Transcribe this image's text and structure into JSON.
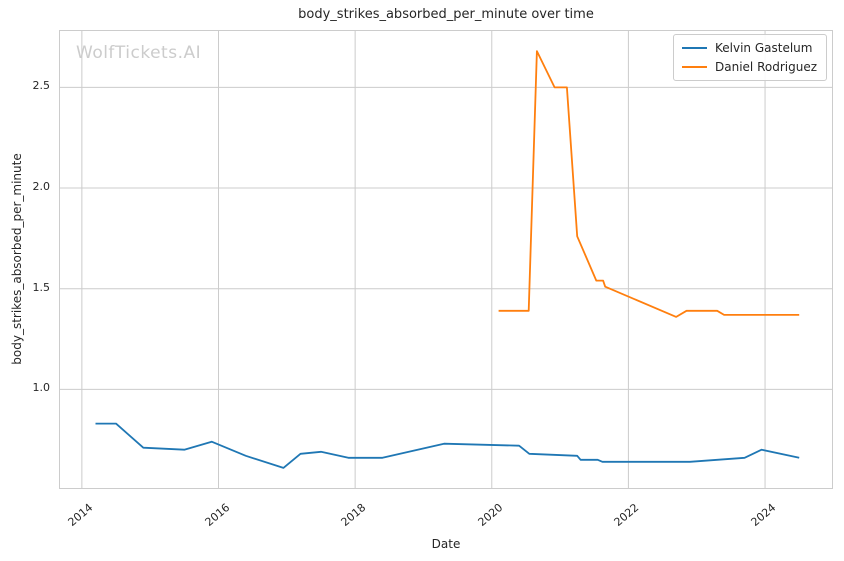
{
  "watermark": "WolfTickets.AI",
  "chart_data": {
    "type": "line",
    "title": "body_strikes_absorbed_per_minute over time",
    "xlabel": "Date",
    "ylabel": "body_strikes_absorbed_per_minute",
    "grid": true,
    "legend_position": "upper right",
    "xlim": [
      2013.68,
      2024.98
    ],
    "ylim": [
      0.51,
      2.78
    ],
    "x_ticks": [
      {
        "value": 2014,
        "label": "2014"
      },
      {
        "value": 2016,
        "label": "2016"
      },
      {
        "value": 2018,
        "label": "2018"
      },
      {
        "value": 2020,
        "label": "2020"
      },
      {
        "value": 2022,
        "label": "2022"
      },
      {
        "value": 2024,
        "label": "2024"
      }
    ],
    "y_ticks": [
      {
        "value": 1.0,
        "label": "1.0"
      },
      {
        "value": 1.5,
        "label": "1.5"
      },
      {
        "value": 2.0,
        "label": "2.0"
      },
      {
        "value": 2.5,
        "label": "2.5"
      }
    ],
    "series": [
      {
        "name": "Kelvin Gastelum",
        "color": "#1f77b4",
        "points": [
          [
            2014.2,
            0.83
          ],
          [
            2014.5,
            0.83
          ],
          [
            2014.9,
            0.71
          ],
          [
            2015.5,
            0.7
          ],
          [
            2015.9,
            0.74
          ],
          [
            2016.4,
            0.67
          ],
          [
            2016.95,
            0.61
          ],
          [
            2017.2,
            0.68
          ],
          [
            2017.5,
            0.69
          ],
          [
            2017.9,
            0.66
          ],
          [
            2018.4,
            0.66
          ],
          [
            2019.3,
            0.73
          ],
          [
            2020.4,
            0.72
          ],
          [
            2020.55,
            0.68
          ],
          [
            2021.25,
            0.67
          ],
          [
            2021.3,
            0.65
          ],
          [
            2021.55,
            0.65
          ],
          [
            2021.62,
            0.64
          ],
          [
            2022.9,
            0.64
          ],
          [
            2023.3,
            0.65
          ],
          [
            2023.7,
            0.66
          ],
          [
            2023.95,
            0.7
          ],
          [
            2024.5,
            0.66
          ]
        ]
      },
      {
        "name": "Daniel Rodriguez",
        "color": "#ff7f0e",
        "points": [
          [
            2020.1,
            1.39
          ],
          [
            2020.54,
            1.39
          ],
          [
            2020.66,
            2.68
          ],
          [
            2020.92,
            2.5
          ],
          [
            2021.1,
            2.5
          ],
          [
            2021.25,
            1.76
          ],
          [
            2021.53,
            1.54
          ],
          [
            2021.63,
            1.54
          ],
          [
            2021.66,
            1.51
          ],
          [
            2022.7,
            1.36
          ],
          [
            2022.85,
            1.39
          ],
          [
            2023.3,
            1.39
          ],
          [
            2023.4,
            1.37
          ],
          [
            2024.5,
            1.37
          ]
        ]
      }
    ],
    "colors": {
      "grid": "#cccccc",
      "spine": "#cccccc",
      "text": "#262626",
      "watermark": "#cccccc"
    }
  }
}
